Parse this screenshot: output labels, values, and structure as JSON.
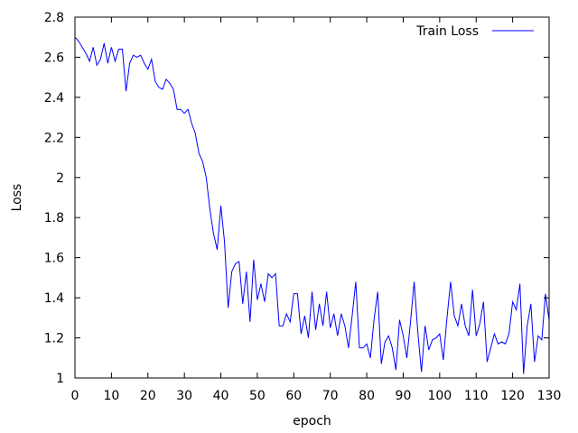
{
  "chart_data": {
    "type": "line",
    "title": "",
    "xlabel": "epoch",
    "ylabel": "Loss",
    "xlim": [
      0,
      130
    ],
    "ylim": [
      1,
      2.8
    ],
    "grid": false,
    "legend_position": "top-right",
    "x_ticks": [
      "0",
      "10",
      "20",
      "30",
      "40",
      "50",
      "60",
      "70",
      "80",
      "90",
      "100",
      "110",
      "120",
      "130"
    ],
    "y_ticks": [
      "1",
      "1.2",
      "1.4",
      "1.6",
      "1.8",
      "2",
      "2.2",
      "2.4",
      "2.6",
      "2.8"
    ],
    "series": [
      {
        "name": "Train Loss",
        "color": "#0000ff",
        "x": [
          0,
          1,
          2,
          3,
          4,
          5,
          6,
          7,
          8,
          9,
          10,
          11,
          12,
          13,
          14,
          15,
          16,
          17,
          18,
          19,
          20,
          21,
          22,
          23,
          24,
          25,
          26,
          27,
          28,
          29,
          30,
          31,
          32,
          33,
          34,
          35,
          36,
          37,
          38,
          39,
          40,
          41,
          42,
          43,
          44,
          45,
          46,
          47,
          48,
          49,
          50,
          51,
          52,
          53,
          54,
          55,
          56,
          57,
          58,
          59,
          60,
          61,
          62,
          63,
          64,
          65,
          66,
          67,
          68,
          69,
          70,
          71,
          72,
          73,
          74,
          75,
          76,
          77,
          78,
          79,
          80,
          81,
          82,
          83,
          84,
          85,
          86,
          87,
          88,
          89,
          90,
          91,
          92,
          93,
          94,
          95,
          96,
          97,
          98,
          99,
          100,
          101,
          102,
          103,
          104,
          105,
          106,
          107,
          108,
          109,
          110,
          111,
          112,
          113,
          114,
          115,
          116,
          117,
          118,
          119,
          120,
          121,
          122,
          123,
          124,
          125,
          126,
          127,
          128,
          129,
          130
        ],
        "y": [
          2.7,
          2.68,
          2.65,
          2.62,
          2.58,
          2.65,
          2.56,
          2.59,
          2.67,
          2.57,
          2.65,
          2.58,
          2.64,
          2.64,
          2.43,
          2.57,
          2.61,
          2.6,
          2.61,
          2.57,
          2.54,
          2.59,
          2.48,
          2.45,
          2.44,
          2.49,
          2.47,
          2.44,
          2.34,
          2.34,
          2.32,
          2.34,
          2.27,
          2.22,
          2.12,
          2.08,
          2.0,
          1.84,
          1.72,
          1.64,
          1.86,
          1.68,
          1.35,
          1.53,
          1.57,
          1.58,
          1.37,
          1.53,
          1.28,
          1.59,
          1.39,
          1.47,
          1.38,
          1.52,
          1.5,
          1.52,
          1.26,
          1.26,
          1.32,
          1.28,
          1.42,
          1.42,
          1.22,
          1.31,
          1.2,
          1.43,
          1.24,
          1.37,
          1.26,
          1.43,
          1.25,
          1.32,
          1.21,
          1.32,
          1.26,
          1.15,
          1.31,
          1.48,
          1.15,
          1.15,
          1.17,
          1.1,
          1.29,
          1.43,
          1.07,
          1.18,
          1.21,
          1.15,
          1.04,
          1.29,
          1.21,
          1.1,
          1.28,
          1.48,
          1.23,
          1.03,
          1.26,
          1.14,
          1.19,
          1.2,
          1.22,
          1.09,
          1.3,
          1.48,
          1.31,
          1.26,
          1.37,
          1.26,
          1.21,
          1.44,
          1.21,
          1.27,
          1.38,
          1.08,
          1.15,
          1.22,
          1.17,
          1.18,
          1.17,
          1.22,
          1.38,
          1.34,
          1.47,
          1.02,
          1.26,
          1.37,
          1.08,
          1.21,
          1.19,
          1.42,
          1.29
        ]
      }
    ]
  }
}
